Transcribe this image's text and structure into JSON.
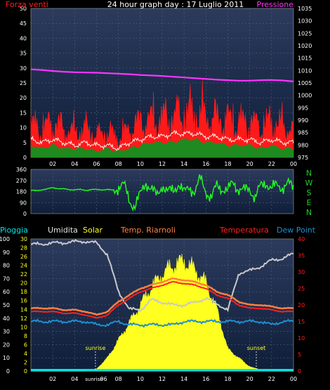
{
  "title": "24 hour graph day : 17 Luglio 2011",
  "colors": {
    "background": "#000000",
    "plot_top": "#2c3a5c",
    "plot_bottom": "#0f1f3a",
    "grid": "#5a6a88",
    "wind_speed": "#ff1a1a",
    "wind_gust": "#ffffff",
    "wind_avg": "#1f8a1f",
    "pressure": "#ff33ff",
    "direction": "#22ff22",
    "rain": "#00e5e5",
    "humidity": "#c8c8c8",
    "solar": "#ffff20",
    "dew_point": "#1e8fd0",
    "temperature": "#ff2020",
    "heat_index": "#ff8040",
    "compass": "#22cc22"
  },
  "chart_data": [
    {
      "type": "line",
      "title": "24 hour graph day : 17 Luglio 2011",
      "left_axis": {
        "label": "Forza venti",
        "range": [
          0,
          50
        ],
        "ticks": [
          "0",
          "5",
          "10",
          "15",
          "20",
          "25",
          "30",
          "35",
          "40",
          "45",
          "50"
        ]
      },
      "right_axis": {
        "label": "Pressione",
        "range": [
          975,
          1035
        ],
        "ticks": [
          "975",
          "980",
          "985",
          "990",
          "995",
          "1000",
          "1005",
          "1010",
          "1015",
          "1020",
          "1025",
          "1030",
          "1035"
        ]
      },
      "x_ticks": [
        "02",
        "04",
        "06",
        "08",
        "10",
        "12",
        "14",
        "16",
        "18",
        "20",
        "22",
        "00"
      ],
      "x": [
        0,
        1,
        2,
        3,
        4,
        5,
        6,
        7,
        8,
        9,
        10,
        11,
        12,
        13,
        14,
        15,
        16,
        17,
        18,
        19,
        20,
        21,
        22,
        23,
        24
      ],
      "series": [
        {
          "name": "Forza venti",
          "axis": "left",
          "values": [
            10,
            9,
            11,
            9,
            8,
            9,
            7,
            8,
            6,
            9,
            11,
            12,
            12,
            13,
            14,
            14,
            13,
            12,
            12,
            11,
            11,
            10,
            11,
            10,
            9
          ]
        },
        {
          "axis": "left",
          "values": [
            6,
            5,
            6,
            5,
            4,
            5,
            4,
            4,
            3,
            5,
            6,
            7,
            7,
            8,
            8,
            8,
            7,
            7,
            6,
            6,
            6,
            5,
            6,
            5,
            5
          ]
        },
        {
          "axis": "left",
          "values": [
            4,
            3,
            4,
            3,
            3,
            3,
            2,
            3,
            2,
            3,
            4,
            5,
            5,
            5,
            6,
            6,
            5,
            5,
            4,
            4,
            4,
            3,
            4,
            3,
            3
          ]
        },
        {
          "name": "Pressione",
          "axis": "right",
          "values": [
            1010.5,
            1010.2,
            1009.8,
            1009.5,
            1009.3,
            1009.2,
            1009.1,
            1008.9,
            1008.7,
            1008.5,
            1008.2,
            1008.0,
            1007.8,
            1007.5,
            1007.2,
            1006.9,
            1006.6,
            1006.3,
            1006.1,
            1005.9,
            1005.9,
            1006.1,
            1006.2,
            1006.0,
            1005.6
          ]
        }
      ]
    },
    {
      "type": "line",
      "left_axis": {
        "range": [
          0,
          360
        ],
        "ticks": [
          "0",
          "90",
          "180",
          "270",
          "360"
        ]
      },
      "compass_labels": [
        "N",
        "W",
        "S",
        "E",
        "N"
      ],
      "x": [
        0,
        0.5,
        1,
        1.5,
        2,
        2.5,
        3,
        3.5,
        4,
        4.5,
        5,
        5.5,
        6,
        6.5,
        7,
        7.5,
        8,
        8.5,
        9,
        9.5,
        10,
        10.5,
        11,
        11.5,
        12,
        12.5,
        13,
        13.5,
        14,
        14.5,
        15,
        15.5,
        16,
        16.5,
        17,
        17.5,
        18,
        18.5,
        19,
        19.5,
        20,
        20.5,
        21,
        21.5,
        22,
        22.5,
        23,
        23.5,
        24
      ],
      "series": [
        {
          "values": [
            190,
            185,
            195,
            200,
            210,
            205,
            200,
            195,
            195,
            195,
            190,
            195,
            195,
            195,
            195,
            190,
            220,
            230,
            110,
            60,
            150,
            260,
            200,
            140,
            240,
            170,
            190,
            250,
            160,
            220,
            180,
            280,
            190,
            120,
            230,
            210,
            180,
            260,
            200,
            180,
            210,
            130,
            220,
            260,
            200,
            230,
            220,
            240,
            210
          ]
        }
      ]
    },
    {
      "type": "area",
      "legend": [
        "Pioggia",
        "Umidita",
        "Solar",
        "Temp. Riarnoli",
        "Temperatura",
        "Dew Point"
      ],
      "left_axis": {
        "range": [
          0,
          100
        ],
        "ticks": [
          "0",
          "10",
          "20",
          "30",
          "40",
          "50",
          "60",
          "70",
          "80",
          "90",
          "100"
        ]
      },
      "left_axis_2": {
        "range": [
          0,
          30
        ],
        "ticks": [
          "0",
          "2",
          "4",
          "6",
          "8",
          "10",
          "12",
          "14",
          "16",
          "18",
          "20",
          "22",
          "24",
          "26",
          "28",
          "30"
        ]
      },
      "right_axis": {
        "range": [
          0,
          40
        ],
        "ticks": [
          "0",
          "5",
          "10",
          "15",
          "20",
          "25",
          "30",
          "35",
          "40"
        ]
      },
      "x_ticks": [
        "02",
        "04",
        "sunrise",
        "06",
        "08",
        "10",
        "12",
        "14",
        "16",
        "18",
        "20",
        "22",
        "00"
      ],
      "annotations": [
        {
          "text": "sunrise",
          "x": 5.9
        },
        {
          "text": "sunset",
          "x": 20.6
        }
      ],
      "x": [
        0,
        1,
        2,
        3,
        4,
        5,
        6,
        7,
        8,
        9,
        10,
        11,
        12,
        13,
        14,
        15,
        16,
        17,
        18,
        19,
        20,
        21,
        22,
        23,
        24
      ],
      "series": [
        {
          "name": "Solar",
          "axis": "left_axis_2",
          "values": [
            0,
            0,
            0,
            0,
            0,
            0,
            0.5,
            3,
            7,
            11,
            15,
            19,
            22,
            24,
            25,
            23,
            20,
            14,
            5,
            3,
            1,
            0.3,
            0,
            0,
            0
          ]
        },
        {
          "name": "Umidita",
          "axis": "left",
          "values": [
            96,
            96,
            97,
            97,
            98,
            98,
            97,
            88,
            60,
            47,
            46,
            54,
            52,
            50,
            50,
            52,
            55,
            51,
            46,
            74,
            76,
            79,
            84,
            85,
            89
          ]
        },
        {
          "name": "Temperatura",
          "axis": "right",
          "values": [
            18,
            18,
            18,
            17.5,
            17.5,
            17,
            16,
            17,
            20,
            22,
            24,
            25,
            26,
            27,
            26.5,
            26,
            25,
            23,
            22,
            20,
            19,
            19,
            18.5,
            18,
            18
          ]
        },
        {
          "name": "Temp. Riarnoli",
          "axis": "right",
          "values": [
            19,
            19,
            19,
            18.5,
            18.5,
            18,
            17,
            18,
            21,
            23,
            25,
            26,
            27,
            28,
            27.5,
            27,
            26,
            24,
            23,
            21,
            20,
            20,
            19.5,
            19,
            19
          ]
        },
        {
          "name": "Dew Point",
          "axis": "right",
          "values": [
            15,
            15,
            15,
            15,
            15,
            15,
            14,
            14,
            15,
            14,
            14,
            14,
            14,
            14,
            15,
            15,
            15,
            15,
            15,
            15,
            15,
            15,
            14,
            15,
            15
          ]
        },
        {
          "name": "Pioggia",
          "axis": "left",
          "values": [
            0,
            0,
            0,
            0,
            0,
            0,
            0,
            0,
            0,
            0,
            0,
            0,
            0,
            0,
            0,
            0,
            0,
            0,
            0,
            0,
            0,
            0,
            0,
            0,
            0
          ]
        }
      ]
    }
  ]
}
